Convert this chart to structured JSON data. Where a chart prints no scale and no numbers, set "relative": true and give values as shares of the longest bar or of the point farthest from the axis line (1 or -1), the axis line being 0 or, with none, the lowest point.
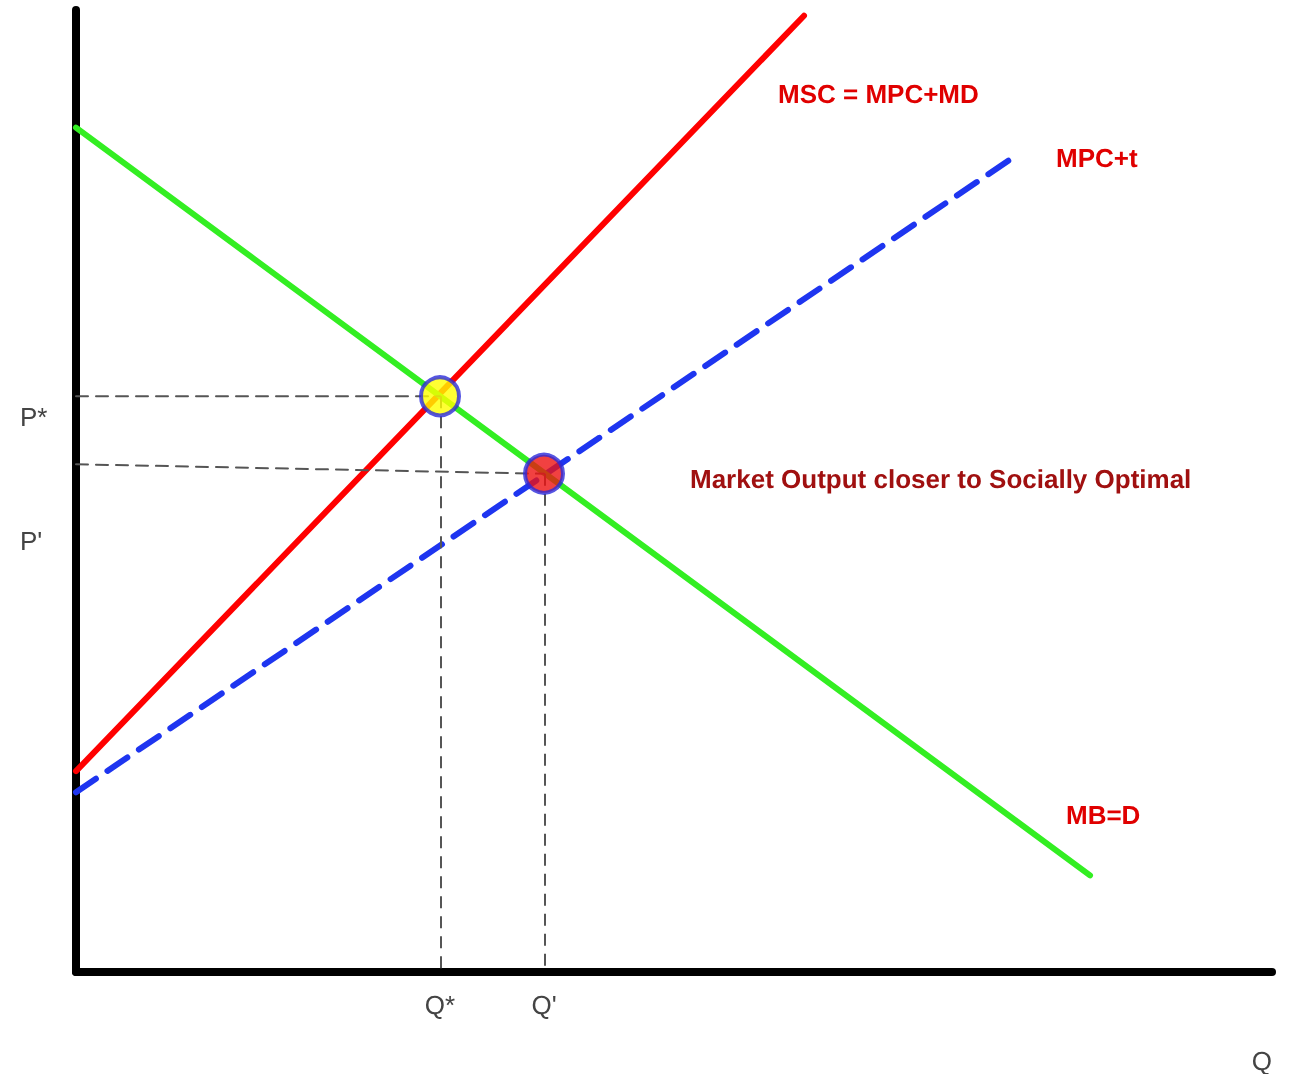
{
  "chart_data": {
    "type": "line",
    "relative": true,
    "xlabel": "Q",
    "grid": false,
    "marker": "none",
    "categories": [
      null,
      null,
      null,
      null,
      null,
      null,
      null,
      null,
      null,
      null,
      null,
      null,
      null,
      null,
      "Q*",
      null,
      null,
      null,
      "Q'",
      null,
      null,
      null,
      null,
      null,
      null,
      null,
      null,
      null,
      null,
      null,
      null,
      null,
      null,
      null,
      null,
      null,
      null,
      null,
      null,
      null,
      null,
      null,
      null,
      null,
      null,
      null,
      null
    ],
    "series": [
      {
        "name": "MSC = MPC+MD",
        "color": "#ff0000",
        "values": [
          0.21,
          null,
          null,
          null,
          null,
          null,
          null,
          null,
          null,
          null,
          null,
          null,
          null,
          null,
          null,
          null,
          null,
          null,
          null,
          null,
          null,
          null,
          null,
          null,
          null,
          null,
          null,
          null,
          1,
          null,
          null,
          null,
          null,
          null,
          null,
          null,
          null,
          null,
          null,
          null,
          null,
          null,
          null,
          null,
          null,
          null,
          null
        ]
      },
      {
        "name": "MPC+t",
        "color": "#1e35f0",
        "line_style": "dashed",
        "values": [
          0.188,
          null,
          null,
          null,
          null,
          null,
          null,
          null,
          null,
          null,
          null,
          null,
          null,
          null,
          null,
          null,
          null,
          null,
          null,
          null,
          null,
          null,
          null,
          null,
          null,
          null,
          null,
          null,
          null,
          null,
          null,
          null,
          null,
          null,
          null,
          null,
          0.851,
          null,
          null,
          null,
          null,
          null,
          null,
          null,
          null,
          null,
          null
        ]
      },
      {
        "name": "MB=D",
        "color": "#33ee22",
        "values": [
          0.883,
          null,
          null,
          null,
          null,
          null,
          null,
          null,
          null,
          null,
          null,
          null,
          null,
          null,
          null,
          null,
          null,
          null,
          null,
          null,
          null,
          null,
          null,
          null,
          null,
          null,
          null,
          null,
          null,
          null,
          null,
          null,
          null,
          null,
          null,
          null,
          null,
          null,
          null,
          0.101,
          null,
          null,
          null,
          null,
          null,
          null,
          null
        ]
      },
      {
        "color": "#555555",
        "line_style": "dashed",
        "values": [
          0.602,
          null,
          null,
          null,
          null,
          null,
          null,
          null,
          null,
          null,
          null,
          null,
          null,
          null,
          0.602,
          null,
          null,
          null,
          null,
          null,
          null,
          null,
          null,
          null,
          null,
          null,
          null,
          null,
          null,
          null,
          null,
          null,
          null,
          null,
          null,
          null,
          null,
          null,
          null,
          null,
          null,
          null,
          null,
          null,
          null,
          null,
          null
        ]
      },
      {
        "color": "#555555",
        "line_style": "dashed",
        "values": [
          0.531,
          null,
          null,
          null,
          null,
          null,
          null,
          null,
          null,
          null,
          null,
          null,
          null,
          null,
          null,
          null,
          null,
          null,
          0.521,
          null,
          null,
          null,
          null,
          null,
          null,
          null,
          null,
          null,
          null,
          null,
          null,
          null,
          null,
          null,
          null,
          null,
          null,
          null,
          null,
          null,
          null,
          null,
          null,
          null,
          null,
          null,
          null
        ]
      },
      {
        "type": "scatter",
        "marker": "circle",
        "color": "#ffff00",
        "values": [
          null,
          null,
          null,
          null,
          null,
          null,
          null,
          null,
          null,
          null,
          null,
          null,
          null,
          null,
          0.602,
          null,
          null,
          null,
          null,
          null,
          null,
          null,
          null,
          null,
          null,
          null,
          null,
          null,
          null,
          null,
          null,
          null,
          null,
          null,
          null,
          null,
          null,
          null,
          null,
          null,
          null,
          null,
          null,
          null,
          null,
          null,
          null
        ]
      },
      {
        "type": "scatter",
        "marker": "circle",
        "color": "#ee1111",
        "values": [
          null,
          null,
          null,
          null,
          null,
          null,
          null,
          null,
          null,
          null,
          null,
          null,
          null,
          null,
          null,
          null,
          null,
          null,
          0.521,
          null,
          null,
          null,
          null,
          null,
          null,
          null,
          null,
          null,
          null,
          null,
          null,
          null,
          null,
          null,
          null,
          null,
          null,
          null,
          null,
          null,
          null,
          null,
          null,
          null,
          null,
          null,
          null
        ]
      }
    ],
    "annotations": [
      "P*",
      "P'",
      "Market Output closer to Socially Optimal"
    ]
  }
}
